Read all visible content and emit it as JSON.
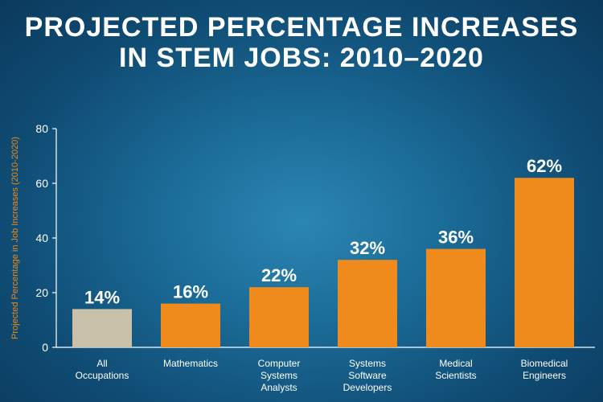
{
  "title_line1": "PROJECTED PERCENTAGE INCREASES",
  "title_line2": "IN STEM JOBS: 2010–2020",
  "colors": {
    "highlight": "#c9c0aa",
    "bar": "#ef8a1c",
    "axis": "#ffffff",
    "ylabel": "#ef8a1c"
  },
  "chart_data": {
    "type": "bar",
    "title": "PROJECTED PERCENTAGE INCREASES IN STEM JOBS: 2010–2020",
    "ylabel": "Projected Percentage in Job Increases (2010-2020)",
    "xlabel": "",
    "ylim": [
      0,
      80
    ],
    "yticks": [
      0,
      20,
      40,
      60,
      80
    ],
    "grid": false,
    "categories": [
      [
        "All",
        "Occupations"
      ],
      [
        "Mathematics"
      ],
      [
        "Computer",
        "Systems",
        "Analysts"
      ],
      [
        "Systems",
        "Software",
        "Developers"
      ],
      [
        "Medical",
        "Scientists"
      ],
      [
        "Biomedical",
        "Engineers"
      ]
    ],
    "values": [
      14,
      16,
      22,
      32,
      36,
      62
    ],
    "data_labels": [
      "14%",
      "16%",
      "22%",
      "32%",
      "36%",
      "62%"
    ]
  }
}
